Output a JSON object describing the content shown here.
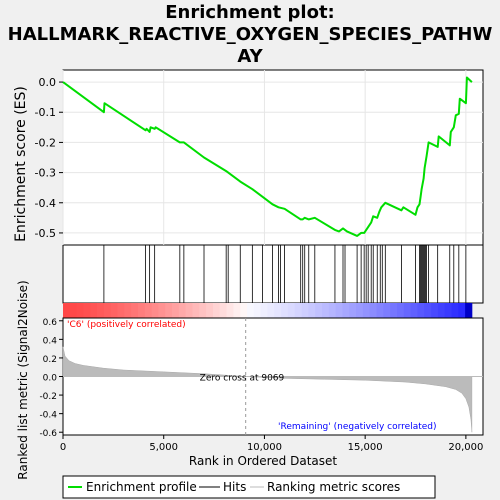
{
  "title_line1": "Enrichment plot:",
  "title_line2": "HALLMARK_REACTIVE_OXYGEN_SPECIES_PATHW",
  "title_line3": "AY",
  "es_ylabel": "Enrichment score (ES)",
  "rank_ylabel_line1": "Ranked list metric (Signal2Noise)",
  "xlabel": "Rank in Ordered Dataset",
  "pos_label": "'C6' (positively correlated)",
  "neg_label": "'Remaining' (negatively correlated)",
  "zero_cross_label": "Zero cross at 9069",
  "legend": {
    "enrichment": "Enrichment profile",
    "hits": "Hits",
    "ranking": "Ranking metric scores"
  },
  "colors": {
    "es_line": "#00dd00",
    "hit_line": "#000000",
    "metric_fill": "#bbbbbb",
    "pos_label": "#ff0000",
    "neg_label": "#0000ff"
  },
  "chart_data": {
    "type": "line",
    "es_yticks": [
      "0.0",
      "-0.1",
      "-0.2",
      "-0.3",
      "-0.4",
      "-0.5"
    ],
    "es_ytick_values": [
      0.0,
      -0.1,
      -0.2,
      -0.3,
      -0.4,
      -0.5
    ],
    "es_ylim": [
      -0.54,
      0.04
    ],
    "rank_yticks": [
      "0.6",
      "0.4",
      "0.2",
      "0.0",
      "-0.2",
      "-0.4",
      "-0.6"
    ],
    "rank_ytick_values": [
      0.6,
      0.4,
      0.2,
      0.0,
      -0.2,
      -0.4,
      -0.6
    ],
    "rank_ylim": [
      -0.63,
      0.63
    ],
    "xticks": [
      "0",
      "5,000",
      "10,000",
      "15,000",
      "20,000"
    ],
    "xtick_values": [
      0,
      5000,
      10000,
      15000,
      20000
    ],
    "xlim": [
      0,
      20850
    ],
    "zero_cross": 9069,
    "es_points": [
      [
        0,
        0.0
      ],
      [
        2030,
        -0.1
      ],
      [
        2060,
        -0.07
      ],
      [
        4100,
        -0.16
      ],
      [
        4150,
        -0.155
      ],
      [
        4300,
        -0.165
      ],
      [
        4350,
        -0.15
      ],
      [
        4550,
        -0.155
      ],
      [
        4600,
        -0.15
      ],
      [
        5800,
        -0.2
      ],
      [
        6000,
        -0.2
      ],
      [
        7000,
        -0.25
      ],
      [
        8100,
        -0.295
      ],
      [
        8200,
        -0.3
      ],
      [
        8800,
        -0.33
      ],
      [
        9400,
        -0.355
      ],
      [
        9900,
        -0.38
      ],
      [
        10400,
        -0.405
      ],
      [
        10700,
        -0.415
      ],
      [
        11000,
        -0.42
      ],
      [
        11800,
        -0.455
      ],
      [
        11900,
        -0.455
      ],
      [
        12000,
        -0.45
      ],
      [
        12200,
        -0.455
      ],
      [
        12500,
        -0.45
      ],
      [
        13500,
        -0.49
      ],
      [
        13700,
        -0.495
      ],
      [
        13900,
        -0.485
      ],
      [
        14100,
        -0.495
      ],
      [
        14600,
        -0.51
      ],
      [
        14800,
        -0.5
      ],
      [
        14950,
        -0.5
      ],
      [
        15050,
        -0.49
      ],
      [
        15150,
        -0.48
      ],
      [
        15300,
        -0.465
      ],
      [
        15400,
        -0.445
      ],
      [
        15600,
        -0.45
      ],
      [
        15700,
        -0.43
      ],
      [
        15800,
        -0.415
      ],
      [
        16000,
        -0.4
      ],
      [
        16800,
        -0.425
      ],
      [
        16900,
        -0.415
      ],
      [
        17500,
        -0.44
      ],
      [
        17600,
        -0.415
      ],
      [
        17700,
        -0.405
      ],
      [
        17750,
        -0.38
      ],
      [
        17800,
        -0.355
      ],
      [
        17900,
        -0.32
      ],
      [
        17950,
        -0.285
      ],
      [
        18050,
        -0.245
      ],
      [
        18150,
        -0.2
      ],
      [
        18600,
        -0.215
      ],
      [
        18650,
        -0.18
      ],
      [
        19200,
        -0.21
      ],
      [
        19250,
        -0.165
      ],
      [
        19400,
        -0.15
      ],
      [
        19500,
        -0.11
      ],
      [
        19650,
        -0.105
      ],
      [
        19700,
        -0.055
      ],
      [
        20000,
        -0.07
      ],
      [
        20050,
        0.015
      ],
      [
        20300,
        0.0
      ]
    ],
    "hits": [
      2030,
      4100,
      4300,
      4550,
      5800,
      6000,
      7000,
      8100,
      8200,
      8800,
      9400,
      9900,
      10400,
      10700,
      10800,
      11000,
      11800,
      11900,
      12000,
      12200,
      12500,
      13500,
      13900,
      14000,
      14600,
      14800,
      14950,
      15050,
      15150,
      15300,
      15400,
      15600,
      15750,
      15850,
      16000,
      16800,
      17500,
      17700,
      17750,
      17800,
      17850,
      17900,
      17950,
      18000,
      18050,
      18150,
      18600,
      19200,
      19400,
      19650,
      20000
    ],
    "metric_points": [
      [
        0,
        0.32
      ],
      [
        100,
        0.22
      ],
      [
        300,
        0.17
      ],
      [
        600,
        0.14
      ],
      [
        1000,
        0.12
      ],
      [
        2000,
        0.09
      ],
      [
        3000,
        0.07
      ],
      [
        5000,
        0.05
      ],
      [
        7000,
        0.03
      ],
      [
        9069,
        0.0
      ],
      [
        11000,
        -0.02
      ],
      [
        13000,
        -0.03
      ],
      [
        15000,
        -0.04
      ],
      [
        17000,
        -0.06
      ],
      [
        18000,
        -0.08
      ],
      [
        19000,
        -0.11
      ],
      [
        19500,
        -0.14
      ],
      [
        19800,
        -0.18
      ],
      [
        20000,
        -0.24
      ],
      [
        20150,
        -0.33
      ],
      [
        20250,
        -0.46
      ],
      [
        20300,
        -0.6
      ]
    ]
  }
}
